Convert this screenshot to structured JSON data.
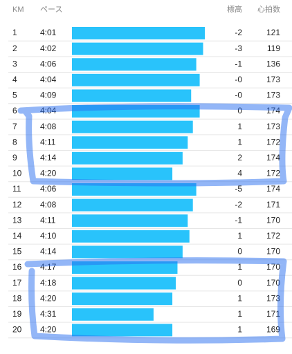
{
  "header": {
    "km": "KM",
    "pace": "ペース",
    "elevation": "標高",
    "heart_rate": "心拍数"
  },
  "rows": [
    {
      "km": "1",
      "pace": "4:01",
      "elevation": "-2",
      "heart_rate": "121"
    },
    {
      "km": "2",
      "pace": "4:02",
      "elevation": "-3",
      "heart_rate": "119"
    },
    {
      "km": "3",
      "pace": "4:06",
      "elevation": "-1",
      "heart_rate": "136"
    },
    {
      "km": "4",
      "pace": "4:04",
      "elevation": "-0",
      "heart_rate": "173"
    },
    {
      "km": "5",
      "pace": "4:09",
      "elevation": "-0",
      "heart_rate": "173"
    },
    {
      "km": "6",
      "pace": "4:04",
      "elevation": "0",
      "heart_rate": "174"
    },
    {
      "km": "7",
      "pace": "4:08",
      "elevation": "1",
      "heart_rate": "173"
    },
    {
      "km": "8",
      "pace": "4:11",
      "elevation": "1",
      "heart_rate": "172"
    },
    {
      "km": "9",
      "pace": "4:14",
      "elevation": "2",
      "heart_rate": "174"
    },
    {
      "km": "10",
      "pace": "4:20",
      "elevation": "4",
      "heart_rate": "172"
    },
    {
      "km": "11",
      "pace": "4:06",
      "elevation": "-5",
      "heart_rate": "174"
    },
    {
      "km": "12",
      "pace": "4:08",
      "elevation": "-2",
      "heart_rate": "171"
    },
    {
      "km": "13",
      "pace": "4:11",
      "elevation": "-1",
      "heart_rate": "170"
    },
    {
      "km": "14",
      "pace": "4:10",
      "elevation": "1",
      "heart_rate": "172"
    },
    {
      "km": "15",
      "pace": "4:14",
      "elevation": "0",
      "heart_rate": "170"
    },
    {
      "km": "16",
      "pace": "4:17",
      "elevation": "1",
      "heart_rate": "170"
    },
    {
      "km": "17",
      "pace": "4:18",
      "elevation": "0",
      "heart_rate": "170"
    },
    {
      "km": "18",
      "pace": "4:20",
      "elevation": "1",
      "heart_rate": "173"
    },
    {
      "km": "19",
      "pace": "4:31",
      "elevation": "1",
      "heart_rate": "171"
    },
    {
      "km": "20",
      "pace": "4:20",
      "elevation": "1",
      "heart_rate": "169"
    }
  ]
}
